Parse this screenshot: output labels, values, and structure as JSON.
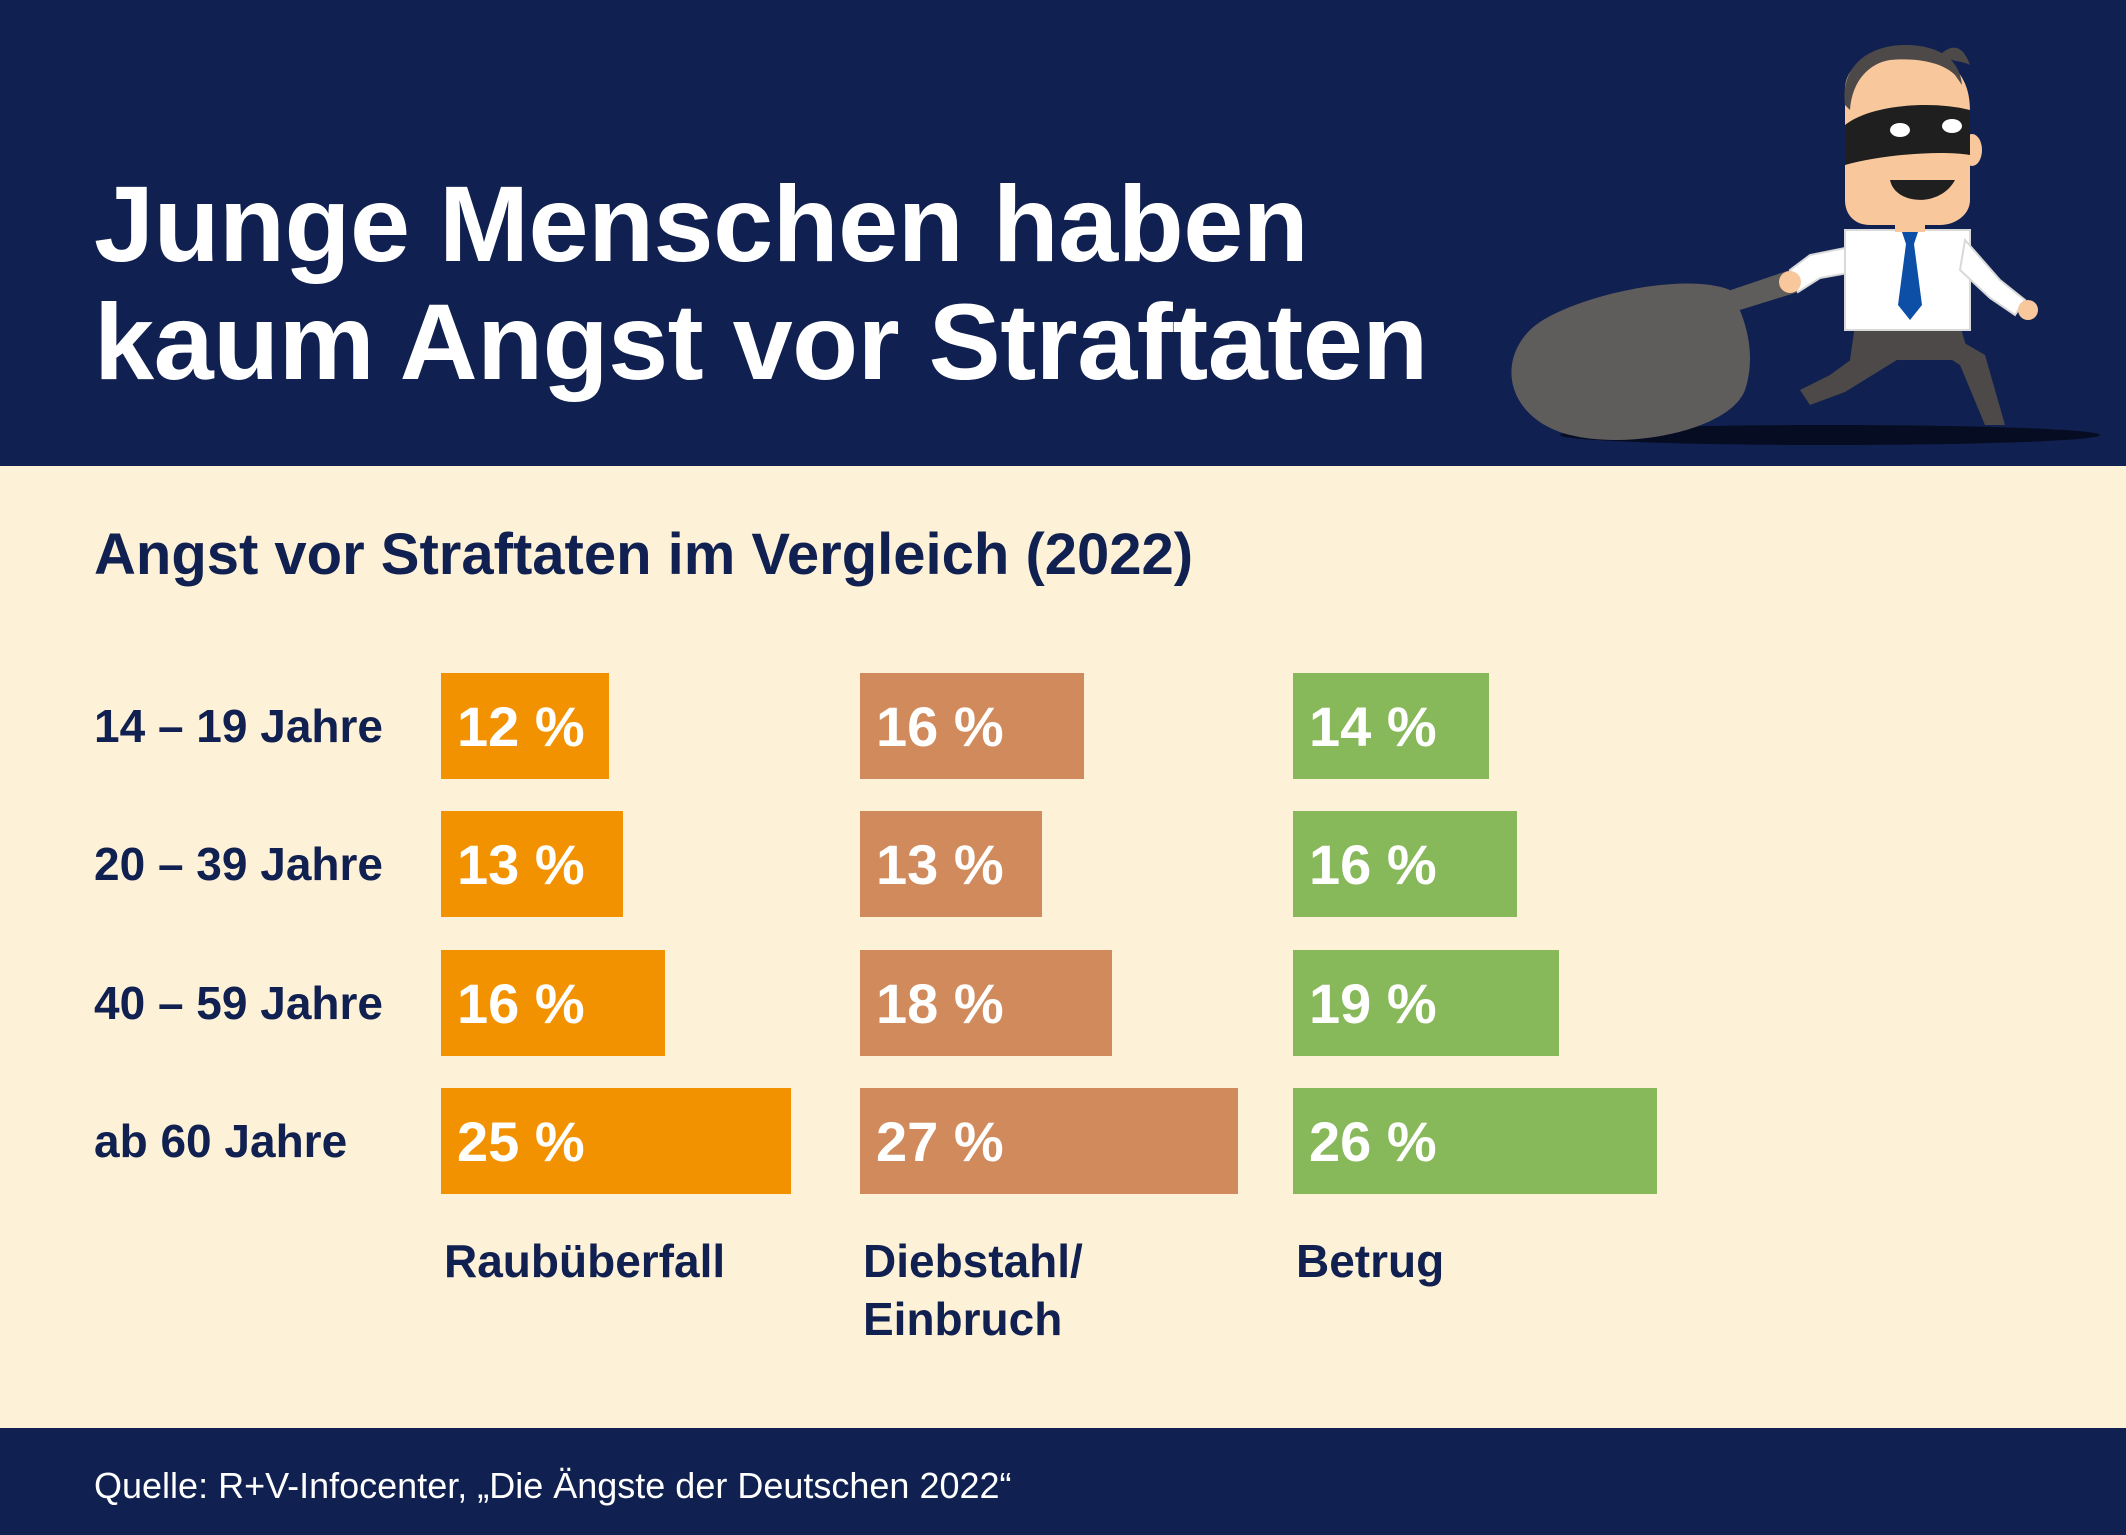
{
  "header": {
    "title_lines": [
      "Junge Menschen haben",
      "kaum Angst vor Straftaten"
    ],
    "illustration_icon": "masked-thief-with-sack-icon"
  },
  "chart_data": {
    "type": "bar",
    "orientation": "horizontal",
    "title": "Angst vor Straftaten im Vergleich (2022)",
    "categories": [
      "14 – 19 Jahre",
      "20 – 39 Jahre",
      "40 – 59 Jahre",
      "ab 60 Jahre"
    ],
    "unit": "%",
    "series": [
      {
        "name": "Raubüberfall",
        "name_lines": [
          "Raubüberfall"
        ],
        "color": "#f39200",
        "values": [
          12,
          13,
          16,
          25
        ]
      },
      {
        "name": "Diebstahl/ Einbruch",
        "name_lines": [
          "Diebstahl/",
          "Einbruch"
        ],
        "color": "#d08a5c",
        "values": [
          16,
          13,
          18,
          27
        ]
      },
      {
        "name": "Betrug",
        "name_lines": [
          "Betrug"
        ],
        "color": "#87b859",
        "values": [
          14,
          16,
          19,
          26
        ]
      }
    ],
    "grid": false,
    "legend": "below-columns"
  },
  "footer": {
    "source": "Quelle: R+V-Infocenter, „Die Ängste der Deutschen 2022“"
  }
}
